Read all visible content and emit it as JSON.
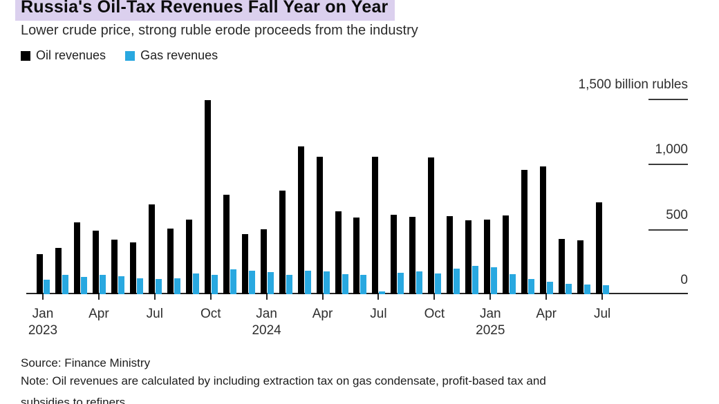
{
  "header": {
    "highlight_color": "#dbd0ee"
  },
  "chart_data": {
    "type": "bar",
    "title": "Russia's Oil-Tax Revenues Fall Year on Year",
    "subtitle": "Lower crude price, strong ruble erode proceeds from the industry",
    "unit": "billion rubles",
    "grid": false,
    "legend_position": "top-left",
    "yaxis_side": "right",
    "ylim": [
      0,
      1500
    ],
    "yticks": [
      {
        "value": 1500,
        "label": "1,500 billion rubles"
      },
      {
        "value": 1000,
        "label": "1,000"
      },
      {
        "value": 500,
        "label": "500"
      },
      {
        "value": 0,
        "label": "0"
      }
    ],
    "xticks": [
      {
        "index": 0,
        "label": "Jan",
        "year": "2023"
      },
      {
        "index": 3,
        "label": "Apr"
      },
      {
        "index": 6,
        "label": "Jul"
      },
      {
        "index": 9,
        "label": "Oct"
      },
      {
        "index": 12,
        "label": "Jan",
        "year": "2024"
      },
      {
        "index": 15,
        "label": "Apr"
      },
      {
        "index": 18,
        "label": "Jul"
      },
      {
        "index": 21,
        "label": "Oct"
      },
      {
        "index": 24,
        "label": "Jan",
        "year": "2025"
      },
      {
        "index": 27,
        "label": "Apr"
      },
      {
        "index": 30,
        "label": "Jul"
      }
    ],
    "x": [
      "Jan 2023",
      "Feb 2023",
      "Mar 2023",
      "Apr 2023",
      "May 2023",
      "Jun 2023",
      "Jul 2023",
      "Aug 2023",
      "Sep 2023",
      "Oct 2023",
      "Nov 2023",
      "Dec 2023",
      "Jan 2024",
      "Feb 2024",
      "Mar 2024",
      "Apr 2024",
      "May 2024",
      "Jun 2024",
      "Jul 2024",
      "Aug 2024",
      "Sep 2024",
      "Oct 2024",
      "Nov 2024",
      "Dec 2024",
      "Jan 2025",
      "Feb 2025",
      "Mar 2025",
      "Apr 2025",
      "May 2025",
      "Jun 2025",
      "Jul 2025"
    ],
    "series": [
      {
        "name": "Oil revenues",
        "color": "#000000",
        "values": [
          305,
          355,
          550,
          490,
          420,
          395,
          690,
          505,
          570,
          1490,
          765,
          460,
          500,
          795,
          1135,
          1055,
          635,
          590,
          1055,
          610,
          595,
          1050,
          600,
          565,
          570,
          605,
          955,
          980,
          425,
          415,
          705
        ]
      },
      {
        "name": "Gas revenues",
        "color": "#29a8e0",
        "values": [
          110,
          150,
          135,
          150,
          140,
          120,
          115,
          120,
          160,
          150,
          190,
          180,
          170,
          150,
          180,
          175,
          155,
          150,
          20,
          165,
          175,
          160,
          195,
          215,
          205,
          155,
          115,
          95,
          80,
          75,
          70
        ]
      }
    ]
  },
  "footer": {
    "source": "Source: Finance Ministry",
    "note": "Note: Oil revenues are calculated by including extraction tax on gas condensate, profit-based tax and",
    "note_clipped": "subsidies to refiners"
  }
}
